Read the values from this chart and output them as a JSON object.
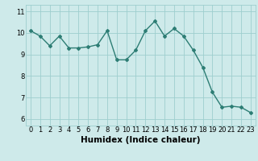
{
  "x": [
    0,
    1,
    2,
    3,
    4,
    5,
    6,
    7,
    8,
    9,
    10,
    11,
    12,
    13,
    14,
    15,
    16,
    17,
    18,
    19,
    20,
    21,
    22,
    23
  ],
  "y": [
    10.1,
    9.85,
    9.4,
    9.85,
    9.3,
    9.3,
    9.35,
    9.45,
    10.1,
    8.75,
    8.75,
    9.2,
    10.1,
    10.55,
    9.85,
    10.2,
    9.85,
    9.2,
    8.4,
    7.25,
    6.55,
    6.6,
    6.55,
    6.3
  ],
  "line_color": "#2d7d74",
  "marker": "D",
  "marker_size": 2.0,
  "background_color": "#ceeaea",
  "grid_color": "#9ecece",
  "xlabel": "Humidex (Indice chaleur)",
  "xlabel_fontsize": 7.5,
  "ylim": [
    5.7,
    11.3
  ],
  "xlim": [
    -0.5,
    23.5
  ],
  "yticks": [
    6,
    7,
    8,
    9,
    10,
    11
  ],
  "xticks": [
    0,
    1,
    2,
    3,
    4,
    5,
    6,
    7,
    8,
    9,
    10,
    11,
    12,
    13,
    14,
    15,
    16,
    17,
    18,
    19,
    20,
    21,
    22,
    23
  ],
  "tick_fontsize": 6.0,
  "line_width": 1.0
}
